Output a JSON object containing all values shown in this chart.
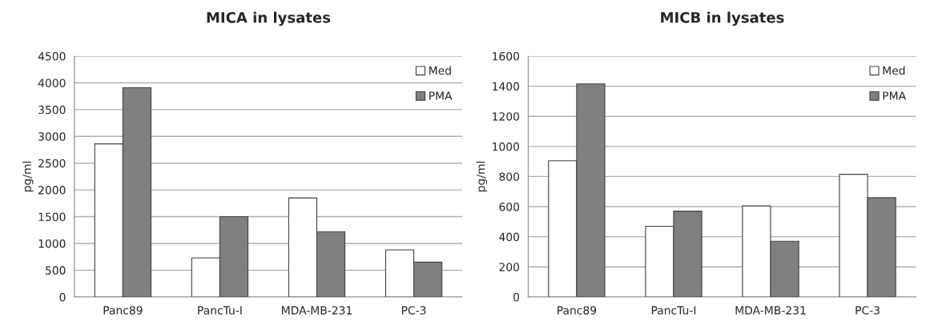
{
  "chart_data": [
    {
      "type": "bar",
      "title": "MICA in lysates",
      "ylabel": "pg/ml",
      "categories": [
        "Panc89",
        "PancTu-I",
        "MDA-MB-231",
        "PC-3"
      ],
      "series": [
        {
          "name": "Med",
          "color": "#ffffff",
          "values": [
            2860,
            730,
            1850,
            880
          ]
        },
        {
          "name": "PMA",
          "color": "#808080",
          "values": [
            3910,
            1500,
            1220,
            650
          ]
        }
      ],
      "ylim": [
        0,
        4500
      ],
      "yticks": [
        0,
        500,
        1000,
        1500,
        2000,
        2500,
        3000,
        3500,
        4000,
        4500
      ],
      "grid": "y",
      "legend": "top right"
    },
    {
      "type": "bar",
      "title": "MICB in lysates",
      "ylabel": "pg/ml",
      "categories": [
        "Panc89",
        "PancTu-I",
        "MDA-MB-231",
        "PC-3"
      ],
      "series": [
        {
          "name": "Med",
          "color": "#ffffff",
          "values": [
            905,
            470,
            605,
            815
          ]
        },
        {
          "name": "PMA",
          "color": "#808080",
          "values": [
            1415,
            570,
            370,
            660
          ]
        }
      ],
      "ylim": [
        0,
        1600
      ],
      "yticks": [
        0,
        200,
        400,
        600,
        800,
        1000,
        1200,
        1400,
        1600
      ],
      "grid": "y",
      "legend": "top right"
    }
  ]
}
